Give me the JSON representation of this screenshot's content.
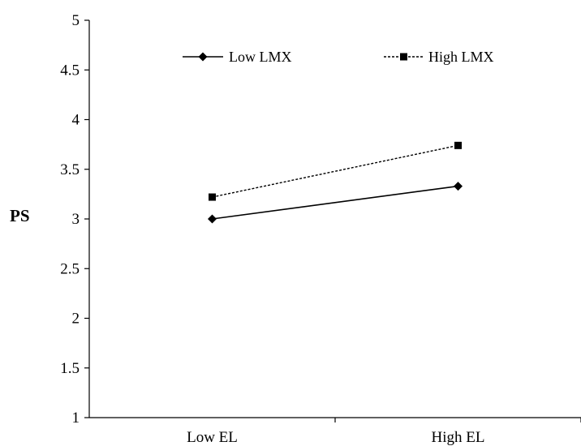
{
  "chart_data": {
    "type": "line",
    "categories": [
      "Low EL",
      "High EL"
    ],
    "series": [
      {
        "name": "Low LMX",
        "values": [
          3.0,
          3.33
        ],
        "style": "solid",
        "marker": "diamond",
        "color": "#000000"
      },
      {
        "name": "High LMX",
        "values": [
          3.22,
          3.74
        ],
        "style": "dashed",
        "marker": "square",
        "color": "#000000"
      }
    ],
    "title": "",
    "xlabel": "",
    "ylabel": "PS",
    "ylim": [
      1,
      5
    ],
    "yticks": [
      "1",
      "1.5",
      "2",
      "2.5",
      "3",
      "3.5",
      "4",
      "4.5",
      "5"
    ],
    "grid": false,
    "legend_position": "top"
  }
}
